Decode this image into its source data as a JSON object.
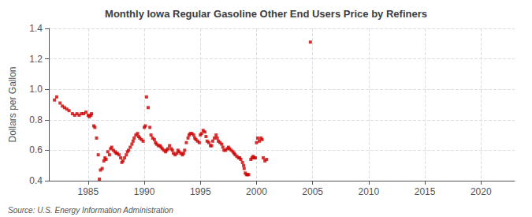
{
  "chart_data": {
    "type": "scatter",
    "title": "Monthly Iowa Regular Gasoline Other End Users Price by Refiners",
    "ylabel": "Dollars per Gallon",
    "annotation": "Source: U.S. Energy Information Administration",
    "color": "#cc0000",
    "marker": "square",
    "grid": true,
    "xlim": [
      1981.5,
      2023
    ],
    "ylim": [
      0.4,
      1.4
    ],
    "xticks": [
      1985,
      1990,
      1995,
      2000,
      2005,
      2010,
      2015,
      2020
    ],
    "yticks": [
      0.4,
      0.6,
      0.8,
      {
        "value": 1.0,
        "label": "1.0"
      },
      1.2,
      1.4
    ],
    "x": [
      1982.0,
      1982.2,
      1982.5,
      1982.7,
      1982.9,
      1983.1,
      1983.3,
      1983.6,
      1983.8,
      1984.0,
      1984.2,
      1984.4,
      1984.6,
      1984.8,
      1985.0,
      1985.1,
      1985.25,
      1985.3,
      1985.5,
      1985.6,
      1985.75,
      1985.9,
      1986.0,
      1986.1,
      1986.25,
      1986.4,
      1986.5,
      1986.6,
      1986.75,
      1986.9,
      1987.0,
      1987.1,
      1987.25,
      1987.4,
      1987.5,
      1987.6,
      1987.75,
      1987.9,
      1988.0,
      1988.1,
      1988.25,
      1988.4,
      1988.5,
      1988.6,
      1988.75,
      1988.9,
      1989.0,
      1989.1,
      1989.25,
      1989.4,
      1989.5,
      1989.6,
      1989.75,
      1989.9,
      1990.0,
      1990.1,
      1990.2,
      1990.35,
      1990.5,
      1990.6,
      1990.75,
      1990.9,
      1991.0,
      1991.1,
      1991.25,
      1991.4,
      1991.5,
      1991.6,
      1991.75,
      1991.9,
      1992.0,
      1992.1,
      1992.25,
      1992.4,
      1992.5,
      1992.6,
      1992.75,
      1992.9,
      1993.0,
      1993.1,
      1993.25,
      1993.4,
      1993.5,
      1993.6,
      1993.75,
      1993.9,
      1994.0,
      1994.1,
      1994.25,
      1994.4,
      1994.5,
      1994.6,
      1994.75,
      1994.9,
      1995.0,
      1995.1,
      1995.25,
      1995.4,
      1995.5,
      1995.6,
      1995.75,
      1995.9,
      1996.0,
      1996.1,
      1996.25,
      1996.4,
      1996.5,
      1996.6,
      1996.75,
      1996.9,
      1997.0,
      1997.1,
      1997.25,
      1997.4,
      1997.5,
      1997.6,
      1997.75,
      1997.9,
      1998.0,
      1998.1,
      1998.25,
      1998.4,
      1998.5,
      1998.6,
      1998.75,
      1998.85,
      1998.9,
      1999.0,
      1999.1,
      1999.2,
      1999.3,
      1999.5,
      1999.6,
      1999.7,
      1999.8,
      1999.9,
      2000.0,
      2000.1,
      2000.25,
      2000.4,
      2000.5,
      2000.6,
      2000.75,
      2000.9,
      2004.8
    ],
    "values": [
      0.93,
      0.95,
      0.91,
      0.89,
      0.88,
      0.87,
      0.86,
      0.84,
      0.83,
      0.84,
      0.83,
      0.84,
      0.84,
      0.85,
      0.83,
      0.82,
      0.83,
      0.84,
      0.76,
      0.75,
      0.68,
      0.57,
      0.41,
      0.47,
      0.48,
      0.53,
      0.55,
      0.54,
      0.59,
      0.57,
      0.61,
      0.62,
      0.6,
      0.59,
      0.58,
      0.58,
      0.57,
      0.55,
      0.52,
      0.53,
      0.55,
      0.57,
      0.59,
      0.6,
      0.62,
      0.64,
      0.66,
      0.68,
      0.7,
      0.71,
      0.69,
      0.68,
      0.67,
      0.66,
      0.75,
      0.76,
      0.95,
      0.88,
      0.75,
      0.7,
      0.68,
      0.67,
      0.65,
      0.64,
      0.63,
      0.63,
      0.62,
      0.61,
      0.6,
      0.59,
      0.6,
      0.61,
      0.63,
      0.61,
      0.6,
      0.58,
      0.57,
      0.58,
      0.6,
      0.59,
      0.58,
      0.57,
      0.58,
      0.6,
      0.65,
      0.68,
      0.7,
      0.71,
      0.71,
      0.7,
      0.68,
      0.67,
      0.66,
      0.65,
      0.7,
      0.71,
      0.73,
      0.72,
      0.69,
      0.66,
      0.65,
      0.63,
      0.63,
      0.66,
      0.68,
      0.7,
      0.68,
      0.66,
      0.65,
      0.64,
      0.62,
      0.6,
      0.6,
      0.61,
      0.62,
      0.61,
      0.6,
      0.59,
      0.58,
      0.57,
      0.56,
      0.55,
      0.55,
      0.54,
      0.52,
      0.5,
      0.48,
      0.45,
      0.44,
      0.44,
      0.44,
      0.54,
      0.55,
      0.56,
      0.55,
      0.55,
      0.65,
      0.68,
      0.66,
      0.68,
      0.67,
      0.55,
      0.53,
      0.54,
      1.31
    ]
  }
}
